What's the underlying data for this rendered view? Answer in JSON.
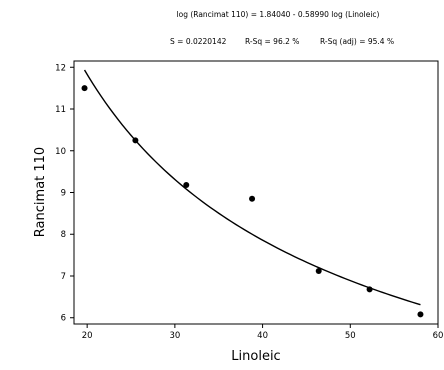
{
  "chart_data": {
    "type": "scatter",
    "title": "log (Rancimat 110) = 1.84040 - 0.58990 log (Linoleic)",
    "stats": {
      "s": "S = 0.0220142",
      "r_sq": "R-Sq = 96.2 %",
      "r_sq_adj": "R-Sq (adj) = 95.4 %"
    },
    "xlabel": "Linoleic",
    "ylabel": "Rancimat 110",
    "xlim": [
      18.5,
      60
    ],
    "ylim": [
      5.85,
      12.15
    ],
    "x_ticks": [
      20,
      30,
      40,
      50,
      60
    ],
    "y_ticks": [
      6,
      7,
      8,
      9,
      10,
      11,
      12
    ],
    "grid": false,
    "points": [
      {
        "x": 19.7,
        "y": 11.5
      },
      {
        "x": 25.5,
        "y": 10.25
      },
      {
        "x": 31.3,
        "y": 9.18
      },
      {
        "x": 38.8,
        "y": 8.85
      },
      {
        "x": 46.4,
        "y": 7.12
      },
      {
        "x": 52.2,
        "y": 6.68
      },
      {
        "x": 58.0,
        "y": 6.08
      }
    ],
    "fit": {
      "intercept": 1.8404,
      "slope": -0.5899,
      "x_from": 19.7,
      "x_to": 58.0
    }
  }
}
